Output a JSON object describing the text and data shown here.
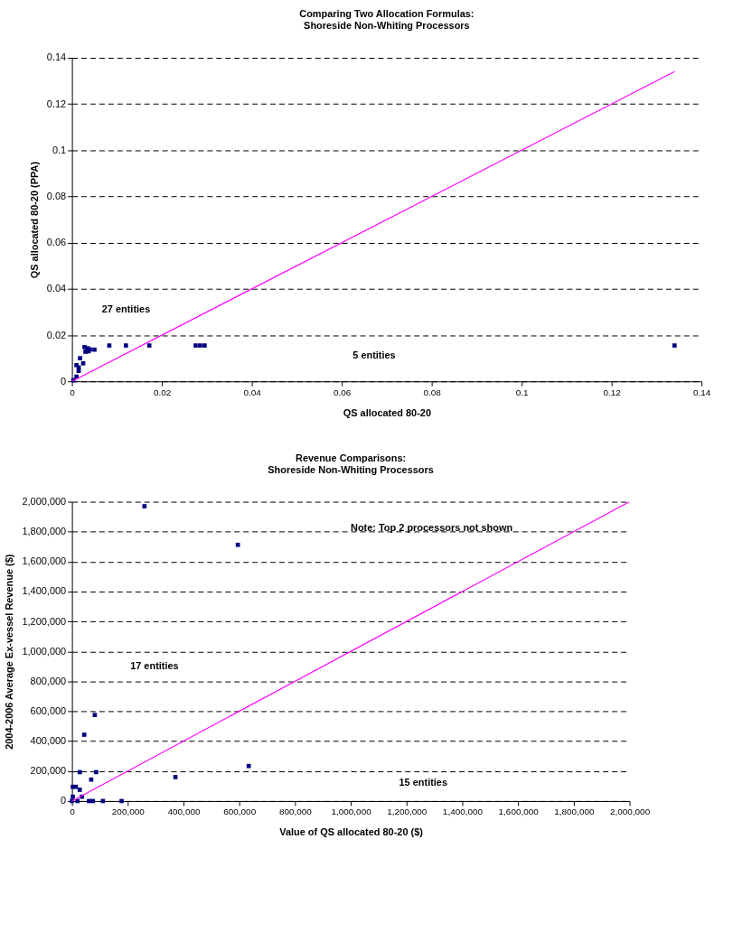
{
  "chart_data": [
    {
      "type": "scatter",
      "title": [
        "Comparing Two Allocation Formulas:",
        "Shoreside Non-Whiting Processors"
      ],
      "xlabel": "QS allocated 80-20",
      "ylabel": "QS allocated 80-20 (PPA)",
      "xlim": [
        0,
        0.14
      ],
      "ylim": [
        0,
        0.14
      ],
      "xticks": [
        0,
        0.02,
        0.04,
        0.06,
        0.08,
        0.1,
        0.12,
        0.14
      ],
      "yticks": [
        0,
        0.02,
        0.04,
        0.06,
        0.08,
        0.1,
        0.12,
        0.14
      ],
      "grid": "y",
      "series": [
        {
          "type": "scatter",
          "marker": "square",
          "color": "#000080",
          "x": [
            0.0028,
            0.0035,
            0.004,
            0.003,
            0.0037,
            0.005,
            0.0083,
            0.012,
            0.0172,
            0.0275,
            0.0285,
            0.0295,
            0.134,
            0.001,
            0.0015,
            0.0015,
            0.0018,
            0.0025,
            0.0003,
            0.001
          ],
          "values": [
            0.0148,
            0.0143,
            0.0138,
            0.0128,
            0.013,
            0.0137,
            0.0155,
            0.0155,
            0.0155,
            0.0155,
            0.0155,
            0.0155,
            0.0155,
            0.007,
            0.006,
            0.0045,
            0.01,
            0.0078,
            0.0005,
            0.002
          ]
        },
        {
          "type": "line",
          "marker": "none",
          "color": "#ff00ff",
          "x": [
            0,
            0.134
          ],
          "values": [
            0,
            0.134
          ]
        }
      ],
      "annotations": [
        "27 entities",
        "5 entities"
      ]
    },
    {
      "type": "scatter",
      "title": [
        "Revenue Comparisons:",
        "Shoreside Non-Whiting Processors"
      ],
      "xlabel": "Value of QS allocated 80-20 ($)",
      "ylabel": "2004-2006 Average Ex-vessel Revenue ($)",
      "xlim": [
        0,
        2000000
      ],
      "ylim": [
        0,
        2000000
      ],
      "xticks": [
        0,
        {
          "value": 200000,
          "label": "200,000"
        },
        {
          "value": 400000,
          "label": "400,000"
        },
        {
          "value": 600000,
          "label": "600,000"
        },
        {
          "value": 800000,
          "label": "800,000"
        },
        {
          "value": 1000000,
          "label": "1,000,000"
        },
        {
          "value": 1200000,
          "label": "1,200,000"
        },
        {
          "value": 1400000,
          "label": "1,400,000"
        },
        {
          "value": 1600000,
          "label": "1,600,000"
        },
        {
          "value": 1800000,
          "label": "1,800,000"
        },
        {
          "value": 2000000,
          "label": "2,000,000"
        }
      ],
      "yticks": [
        0,
        {
          "value": 200000,
          "label": "200,000"
        },
        {
          "value": 400000,
          "label": "400,000"
        },
        {
          "value": 600000,
          "label": "600,000"
        },
        {
          "value": 800000,
          "label": "800,000"
        },
        {
          "value": 1000000,
          "label": "1,000,000"
        },
        {
          "value": 1200000,
          "label": "1,200,000"
        },
        {
          "value": 1400000,
          "label": "1,400,000"
        },
        {
          "value": 1600000,
          "label": "1,600,000"
        },
        {
          "value": 1800000,
          "label": "1,800,000"
        },
        {
          "value": 2000000,
          "label": "2,000,000"
        }
      ],
      "grid": "y",
      "series": [
        {
          "type": "scatter",
          "marker": "square",
          "color": "#000080",
          "x": [
            260000,
            595000,
            82000,
            44000,
            28000,
            87000,
            69000,
            3000,
            14000,
            28000,
            36000,
            3000,
            371000,
            634000,
            61000,
            75000,
            111000,
            178000,
            0,
            20000
          ],
          "values": [
            1970000,
            1712000,
            575000,
            443000,
            193000,
            193000,
            143000,
            95000,
            95000,
            75000,
            29000,
            29000,
            160000,
            234000,
            0,
            0,
            0,
            0,
            0,
            0
          ]
        },
        {
          "type": "line",
          "marker": "none",
          "color": "#ff00ff",
          "x": [
            0,
            2000000
          ],
          "values": [
            0,
            2000000
          ]
        }
      ],
      "annotations": [
        "17 entities",
        "15 entities",
        "Note: Top 2 processors not shown"
      ]
    }
  ]
}
